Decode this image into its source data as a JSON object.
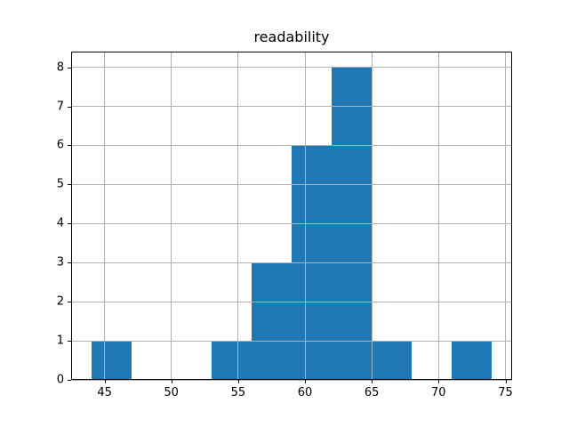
{
  "figure": {
    "background": "#ffffff"
  },
  "chart_data": {
    "type": "bar",
    "subtype": "histogram",
    "title": "readability",
    "xlabel": "",
    "ylabel": "",
    "bin_edges": [
      44,
      47,
      50,
      53,
      56,
      59,
      62,
      65,
      68,
      71,
      74
    ],
    "counts": [
      1,
      0,
      0,
      1,
      3,
      6,
      8,
      1,
      0,
      1
    ],
    "xticks": [
      45,
      50,
      55,
      60,
      65,
      70,
      75
    ],
    "yticks": [
      0,
      1,
      2,
      3,
      4,
      5,
      6,
      7,
      8
    ],
    "xlim": [
      42.5,
      75.5
    ],
    "ylim": [
      0,
      8.4
    ],
    "bar_color": "#1f77b4",
    "grid": true,
    "grid_color": "#b0b0b0",
    "axis_color": "#000000",
    "legend_position": "none"
  }
}
